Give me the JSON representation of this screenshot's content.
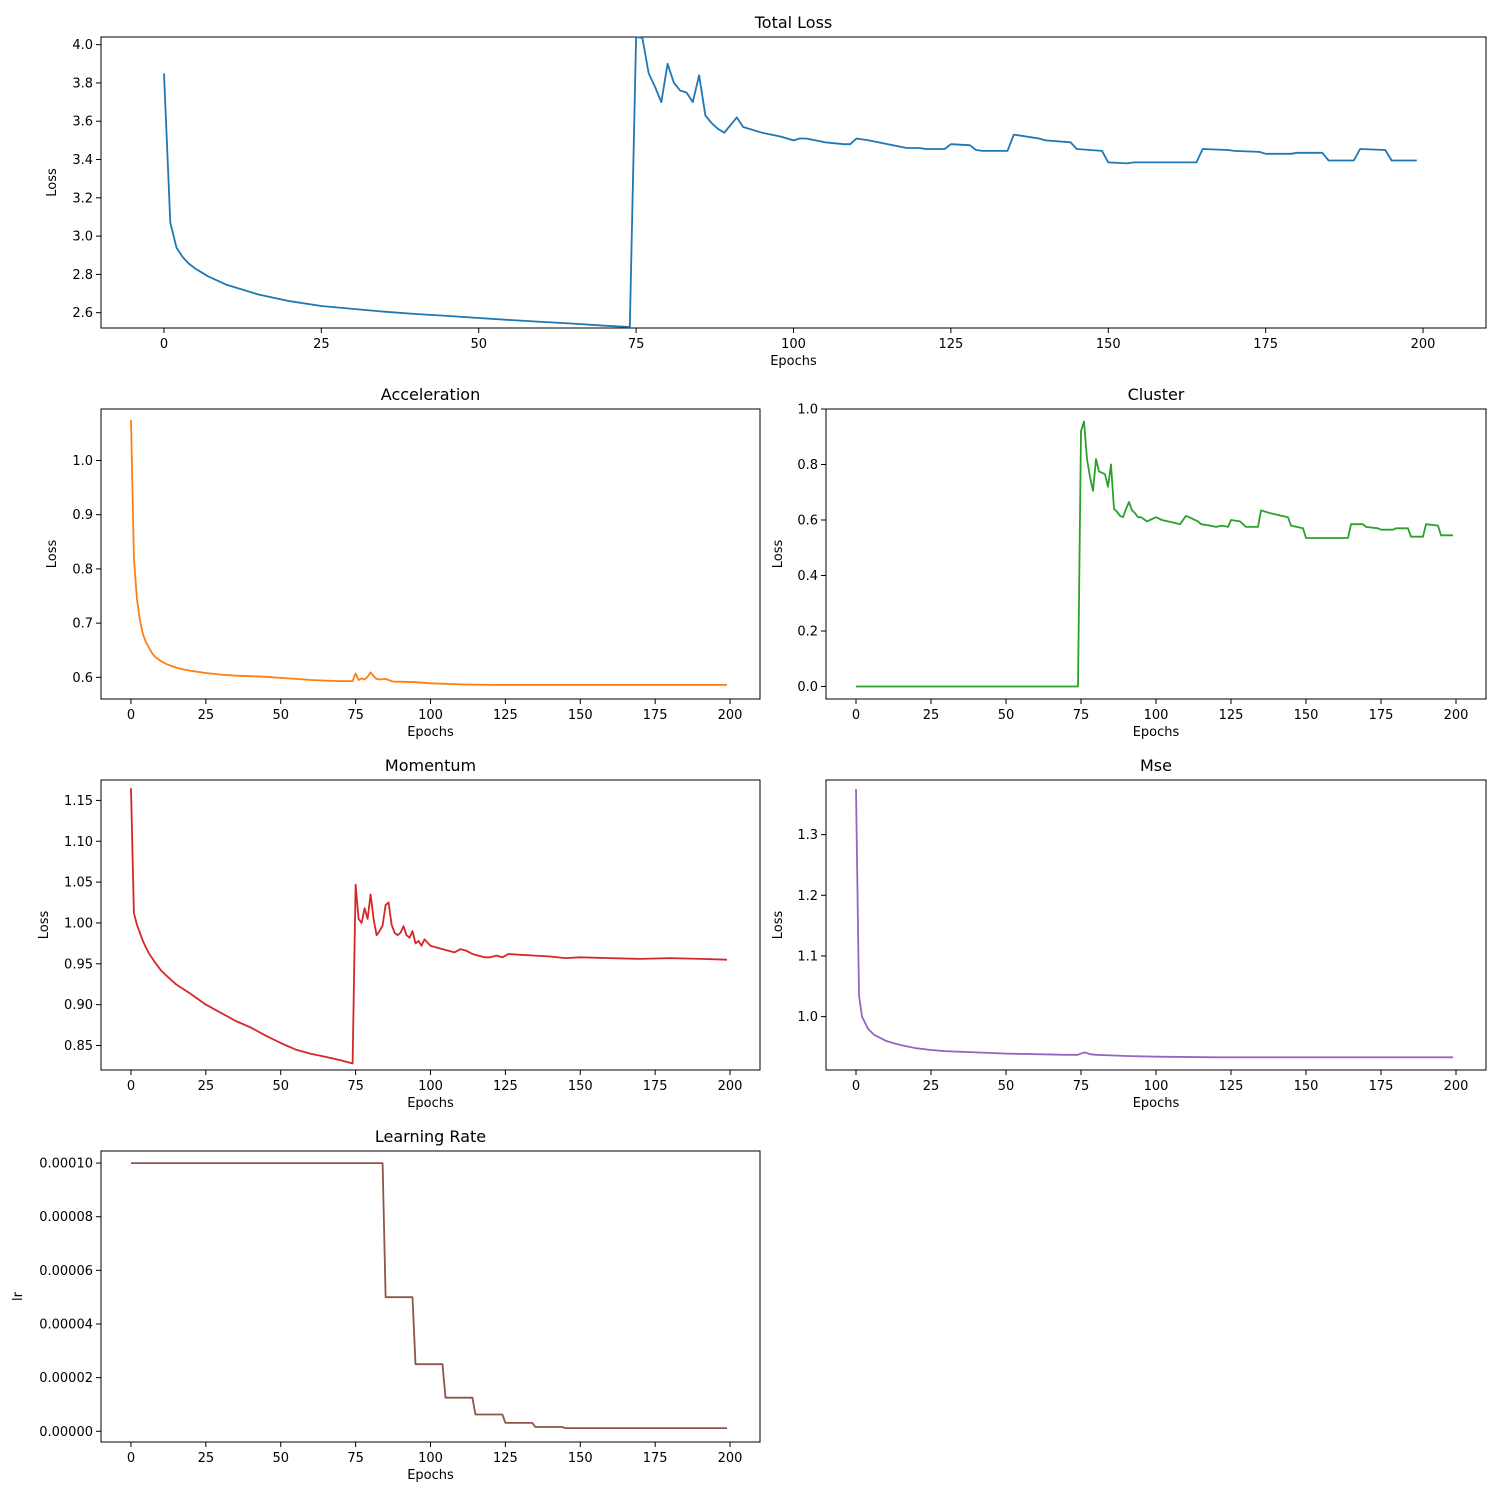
{
  "chart_data": [
    {
      "id": "total",
      "type": "line",
      "title": "Total Loss",
      "xlabel": "Epochs",
      "ylabel": "Loss",
      "xlim": [
        -10,
        210
      ],
      "ylim": [
        2.52,
        4.04
      ],
      "xticks": [
        0,
        25,
        50,
        75,
        100,
        125,
        150,
        175,
        200
      ],
      "yticks": [
        "2.6",
        "2.8",
        "3.0",
        "3.2",
        "3.4",
        "3.6",
        "3.8",
        "4.0"
      ],
      "color": "#1f77b4",
      "grid": false,
      "x": [
        0,
        1,
        2,
        3,
        4,
        5,
        7,
        10,
        15,
        20,
        25,
        30,
        35,
        40,
        45,
        50,
        55,
        60,
        65,
        70,
        74,
        75,
        76,
        77,
        78,
        79,
        80,
        81,
        82,
        83,
        84,
        85,
        86,
        87,
        88,
        89,
        90,
        91,
        92,
        95,
        98,
        100,
        101,
        102,
        105,
        108,
        109,
        110,
        112,
        115,
        118,
        120,
        121,
        122,
        124,
        125,
        128,
        129,
        130,
        134,
        135,
        139,
        140,
        144,
        145,
        149,
        150,
        153,
        154,
        157,
        159,
        164,
        165,
        169,
        170,
        174,
        175,
        179,
        180,
        184,
        185,
        189,
        190,
        194,
        195,
        199
      ],
      "y": [
        3.85,
        3.07,
        2.94,
        2.89,
        2.855,
        2.83,
        2.79,
        2.745,
        2.695,
        2.66,
        2.635,
        2.62,
        2.605,
        2.593,
        2.583,
        2.572,
        2.562,
        2.552,
        2.543,
        2.532,
        2.525,
        4.04,
        4.035,
        3.85,
        3.78,
        3.7,
        3.9,
        3.8,
        3.76,
        3.75,
        3.7,
        3.84,
        3.63,
        3.59,
        3.56,
        3.54,
        3.58,
        3.62,
        3.57,
        3.54,
        3.52,
        3.5,
        3.51,
        3.51,
        3.49,
        3.48,
        3.48,
        3.51,
        3.5,
        3.48,
        3.46,
        3.46,
        3.455,
        3.455,
        3.455,
        3.48,
        3.475,
        3.45,
        3.445,
        3.445,
        3.53,
        3.51,
        3.5,
        3.49,
        3.455,
        3.445,
        3.385,
        3.38,
        3.385,
        3.385,
        3.385,
        3.385,
        3.455,
        3.45,
        3.445,
        3.44,
        3.43,
        3.43,
        3.435,
        3.435,
        3.395,
        3.395,
        3.455,
        3.45,
        3.395,
        3.395
      ]
    },
    {
      "id": "acceleration",
      "type": "line",
      "title": "Acceleration",
      "xlabel": "Epochs",
      "ylabel": "Loss",
      "xlim": [
        -10,
        210
      ],
      "ylim": [
        0.56,
        1.095
      ],
      "xticks": [
        0,
        25,
        50,
        75,
        100,
        125,
        150,
        175,
        200
      ],
      "yticks": [
        "0.6",
        "0.7",
        "0.8",
        "0.9",
        "1.0"
      ],
      "color": "#ff7f0e",
      "grid": false,
      "x": [
        0,
        1,
        2,
        3,
        4,
        5,
        6,
        7,
        8,
        10,
        12,
        15,
        18,
        20,
        25,
        30,
        35,
        40,
        45,
        50,
        55,
        60,
        65,
        70,
        74,
        75,
        76,
        77,
        78,
        79,
        80,
        81,
        82,
        83,
        85,
        86,
        87,
        88,
        90,
        95,
        100,
        110,
        120,
        150,
        199
      ],
      "y": [
        1.075,
        0.82,
        0.745,
        0.705,
        0.68,
        0.665,
        0.655,
        0.645,
        0.638,
        0.63,
        0.624,
        0.618,
        0.614,
        0.612,
        0.608,
        0.605,
        0.603,
        0.602,
        0.601,
        0.599,
        0.597,
        0.595,
        0.594,
        0.593,
        0.593,
        0.607,
        0.595,
        0.598,
        0.596,
        0.601,
        0.609,
        0.602,
        0.597,
        0.596,
        0.597,
        0.595,
        0.593,
        0.592,
        0.592,
        0.591,
        0.589,
        0.587,
        0.586,
        0.586,
        0.586
      ]
    },
    {
      "id": "cluster",
      "type": "line",
      "title": "Cluster",
      "xlabel": "Epochs",
      "ylabel": "Loss",
      "xlim": [
        -10,
        210
      ],
      "ylim": [
        -0.045,
        1.0
      ],
      "xticks": [
        0,
        25,
        50,
        75,
        100,
        125,
        150,
        175,
        200
      ],
      "yticks": [
        "0.0",
        "0.2",
        "0.4",
        "0.6",
        "0.8",
        "1.0"
      ],
      "color": "#2ca02c",
      "grid": false,
      "x": [
        0,
        74,
        75,
        76,
        77,
        78,
        79,
        80,
        81,
        82,
        83,
        84,
        85,
        86,
        87,
        88,
        89,
        90,
        91,
        92,
        93,
        94,
        95,
        97,
        98,
        100,
        102,
        104,
        106,
        108,
        110,
        112,
        114,
        115,
        118,
        120,
        122,
        124,
        125,
        128,
        130,
        134,
        135,
        138,
        140,
        144,
        145,
        149,
        150,
        154,
        156,
        160,
        164,
        165,
        169,
        170,
        174,
        175,
        179,
        180,
        184,
        185,
        189,
        190,
        194,
        195,
        199
      ],
      "y": [
        0.0,
        0.0,
        0.92,
        0.955,
        0.82,
        0.755,
        0.705,
        0.82,
        0.775,
        0.77,
        0.765,
        0.72,
        0.8,
        0.64,
        0.63,
        0.615,
        0.61,
        0.64,
        0.665,
        0.635,
        0.625,
        0.61,
        0.61,
        0.595,
        0.6,
        0.61,
        0.6,
        0.595,
        0.59,
        0.585,
        0.615,
        0.605,
        0.595,
        0.585,
        0.58,
        0.575,
        0.58,
        0.575,
        0.6,
        0.595,
        0.575,
        0.575,
        0.635,
        0.625,
        0.62,
        0.61,
        0.58,
        0.57,
        0.535,
        0.535,
        0.535,
        0.535,
        0.535,
        0.585,
        0.585,
        0.575,
        0.57,
        0.565,
        0.565,
        0.57,
        0.57,
        0.54,
        0.54,
        0.585,
        0.58,
        0.545,
        0.545
      ]
    },
    {
      "id": "momentum",
      "type": "line",
      "title": "Momentum",
      "xlabel": "Epochs",
      "ylabel": "Loss",
      "xlim": [
        -10,
        210
      ],
      "ylim": [
        0.82,
        1.175
      ],
      "xticks": [
        0,
        25,
        50,
        75,
        100,
        125,
        150,
        175,
        200
      ],
      "yticks": [
        "0.85",
        "0.90",
        "0.95",
        "1.00",
        "1.05",
        "1.10",
        "1.15"
      ],
      "color": "#d62728",
      "grid": false,
      "x": [
        0,
        1,
        2,
        3,
        4,
        5,
        6,
        8,
        10,
        12,
        15,
        20,
        25,
        30,
        35,
        40,
        45,
        50,
        55,
        60,
        65,
        70,
        74,
        75,
        76,
        77,
        78,
        79,
        80,
        81,
        82,
        83,
        84,
        85,
        86,
        87,
        88,
        89,
        90,
        91,
        92,
        93,
        94,
        95,
        96,
        97,
        98,
        100,
        102,
        104,
        106,
        108,
        110,
        112,
        114,
        116,
        118,
        120,
        122,
        124,
        126,
        130,
        135,
        140,
        145,
        150,
        160,
        170,
        180,
        190,
        199
      ],
      "y": [
        1.165,
        1.012,
        0.998,
        0.988,
        0.978,
        0.97,
        0.963,
        0.952,
        0.942,
        0.935,
        0.925,
        0.913,
        0.9,
        0.89,
        0.88,
        0.872,
        0.862,
        0.853,
        0.845,
        0.84,
        0.836,
        0.832,
        0.828,
        1.047,
        1.005,
        1.0,
        1.018,
        1.005,
        1.035,
        1.005,
        0.985,
        0.99,
        0.997,
        1.022,
        1.025,
        0.998,
        0.988,
        0.985,
        0.988,
        0.996,
        0.985,
        0.982,
        0.99,
        0.975,
        0.978,
        0.972,
        0.98,
        0.972,
        0.97,
        0.968,
        0.966,
        0.964,
        0.968,
        0.966,
        0.962,
        0.96,
        0.958,
        0.958,
        0.96,
        0.958,
        0.962,
        0.961,
        0.96,
        0.959,
        0.957,
        0.958,
        0.957,
        0.956,
        0.957,
        0.956,
        0.955
      ]
    },
    {
      "id": "mse",
      "type": "line",
      "title": "Mse",
      "xlabel": "Epochs",
      "ylabel": "Loss",
      "xlim": [
        -10,
        210
      ],
      "ylim": [
        0.912,
        1.39
      ],
      "xticks": [
        0,
        25,
        50,
        75,
        100,
        125,
        150,
        175,
        200
      ],
      "yticks": [
        "1.0",
        "1.1",
        "1.2",
        "1.3"
      ],
      "color": "#9467bd",
      "grid": false,
      "x": [
        0,
        1,
        2,
        3,
        4,
        5,
        6,
        8,
        10,
        12,
        15,
        20,
        25,
        30,
        40,
        50,
        60,
        70,
        74,
        75,
        76,
        77,
        78,
        80,
        85,
        90,
        100,
        120,
        150,
        199
      ],
      "y": [
        1.375,
        1.035,
        1.0,
        0.99,
        0.98,
        0.975,
        0.97,
        0.965,
        0.96,
        0.957,
        0.953,
        0.948,
        0.945,
        0.943,
        0.941,
        0.939,
        0.938,
        0.937,
        0.937,
        0.939,
        0.941,
        0.94,
        0.938,
        0.937,
        0.936,
        0.935,
        0.934,
        0.933,
        0.933,
        0.933
      ]
    },
    {
      "id": "lr",
      "type": "line",
      "title": "Learning Rate",
      "xlabel": "Epochs",
      "ylabel": "lr",
      "xlim": [
        -10,
        210
      ],
      "ylim": [
        -4e-06,
        0.0001045
      ],
      "xticks": [
        0,
        25,
        50,
        75,
        100,
        125,
        150,
        175,
        200
      ],
      "yticks": [
        "0.00000",
        "0.00002",
        "0.00004",
        "0.00006",
        "0.00008",
        "0.00010"
      ],
      "color": "#8c564b",
      "grid": false,
      "x": [
        0,
        84,
        85,
        94,
        95,
        104,
        105,
        114,
        115,
        124,
        125,
        134,
        135,
        144,
        145,
        199
      ],
      "y": [
        0.0001,
        0.0001,
        5e-05,
        5e-05,
        2.5e-05,
        2.5e-05,
        1.25e-05,
        1.25e-05,
        6.25e-06,
        6.25e-06,
        3.125e-06,
        3.125e-06,
        1.6e-06,
        1.6e-06,
        1.2e-06,
        1.2e-06
      ]
    }
  ]
}
